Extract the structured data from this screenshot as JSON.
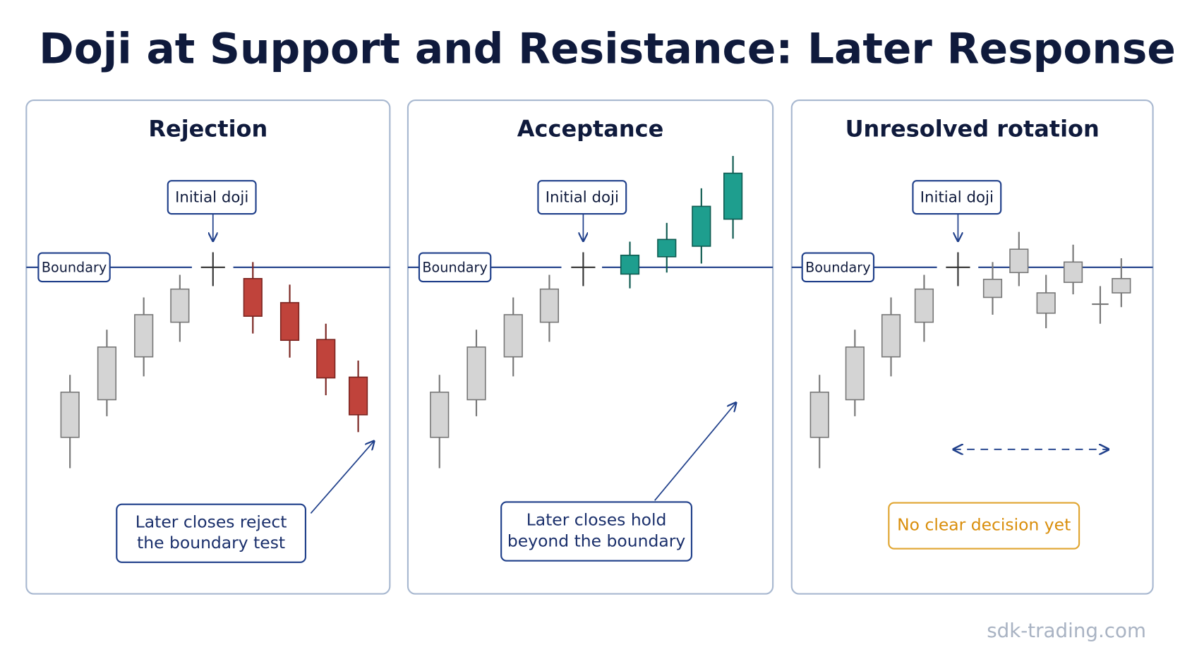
{
  "header": {
    "title": "Doji at Support and Resistance: Later Response"
  },
  "panels": [
    {
      "title": "Rejection",
      "doji_label": "Initial doji",
      "boundary_label": "Boundary",
      "note_lines": [
        "Later closes reject",
        "the boundary test"
      ]
    },
    {
      "title": "Acceptance",
      "doji_label": "Initial doji",
      "boundary_label": "Boundary",
      "note_lines": [
        "Later closes hold",
        "beyond the boundary"
      ]
    },
    {
      "title": "Unresolved rotation",
      "doji_label": "Initial doji",
      "boundary_label": "Boundary",
      "note_lines": [
        "No clear decision yet"
      ]
    }
  ],
  "footer": {
    "watermark": "sdk-trading.com"
  }
}
